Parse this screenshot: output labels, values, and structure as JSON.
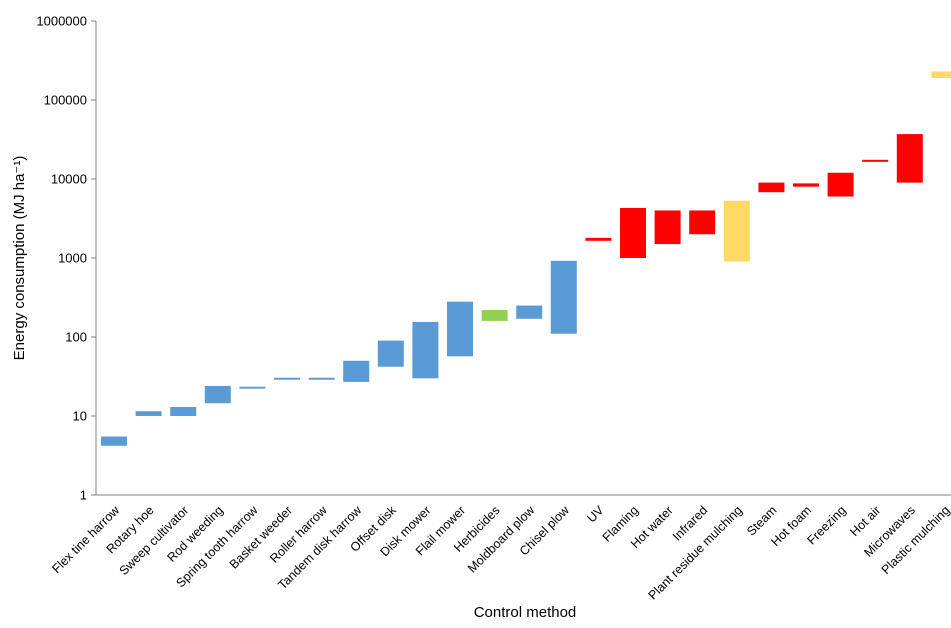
{
  "chart_data": {
    "type": "bar",
    "subtype": "floating-range",
    "xlabel": "Control method",
    "ylabel": "Energy consumption (MJ ha⁻¹)",
    "yscale": "log",
    "ylim": [
      1,
      1000000
    ],
    "yticks": [
      1,
      10,
      100,
      1000,
      10000,
      100000,
      1000000
    ],
    "ytick_labels": [
      "1",
      "10",
      "100",
      "1000",
      "10000",
      "100000",
      "1000000"
    ],
    "grid": false,
    "legend": "none",
    "categories": [
      "Flex tine harrow",
      "Rotary hoe",
      "Sweep cultivator",
      "Rod weeding",
      "Spring tooth harrow",
      "Basket weeder",
      "Roller harrow",
      "Tandem disk harrow",
      "Offset disk",
      "Disk mower",
      "Flail mower",
      "Herbicides",
      "Moldboard plow",
      "Chisel plow",
      "UV",
      "Flaming",
      "Hot water",
      "Infrared",
      "Plant residue mulching",
      "Steam",
      "Hot foam",
      "Freezing",
      "Hot air",
      "Microwaves",
      "Plastic mulching"
    ],
    "low": [
      4.2,
      10,
      10,
      14.5,
      22.5,
      29,
      29,
      27,
      42,
      30,
      57,
      160,
      170,
      110,
      1650,
      1000,
      1500,
      2000,
      900,
      6800,
      8000,
      6000,
      16500,
      9000,
      190000
    ],
    "high": [
      5.5,
      11.5,
      13,
      24,
      23.5,
      30.5,
      30.5,
      50,
      90,
      155,
      280,
      220,
      250,
      920,
      1800,
      4300,
      4000,
      4000,
      5300,
      9000,
      8800,
      12000,
      17500,
      37000,
      230000
    ],
    "colors": {
      "mechanical": "#5b9bd5",
      "chemical": "#92d050",
      "thermal": "#ff0000",
      "mulching": "#ffd966"
    },
    "bar_color_groups": [
      "mechanical",
      "mechanical",
      "mechanical",
      "mechanical",
      "mechanical",
      "mechanical",
      "mechanical",
      "mechanical",
      "mechanical",
      "mechanical",
      "mechanical",
      "chemical",
      "mechanical",
      "mechanical",
      "thermal",
      "thermal",
      "thermal",
      "thermal",
      "mulching",
      "thermal",
      "thermal",
      "thermal",
      "thermal",
      "thermal",
      "mulching"
    ]
  }
}
